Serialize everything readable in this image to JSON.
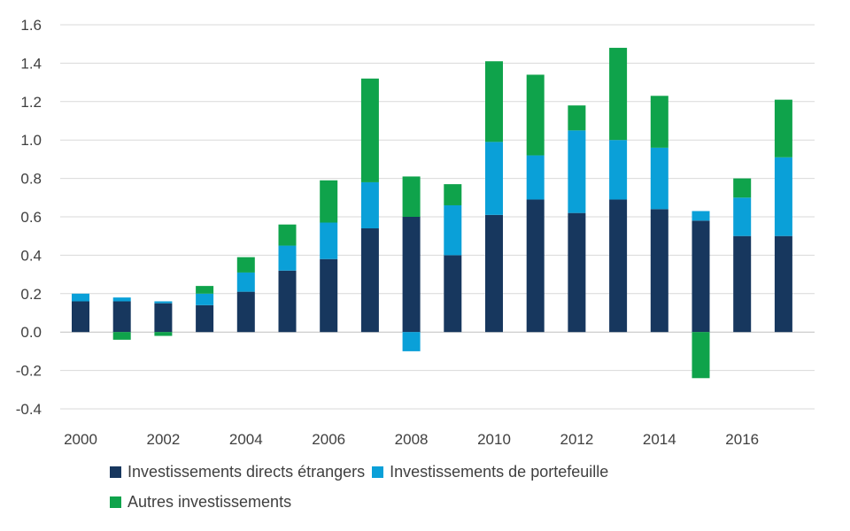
{
  "chart_data": {
    "type": "bar",
    "stacked": true,
    "title": "",
    "xlabel": "",
    "ylabel": "",
    "ylim": [
      -0.4,
      1.6
    ],
    "yticks": [
      "-0.4",
      "-0.2",
      "0.0",
      "0.2",
      "0.4",
      "0.6",
      "0.8",
      "1.0",
      "1.2",
      "1.4",
      "1.6"
    ],
    "xtick_labels": [
      "2000",
      "2002",
      "2004",
      "2006",
      "2008",
      "2010",
      "2012",
      "2014",
      "2016"
    ],
    "categories": [
      2000,
      2001,
      2002,
      2003,
      2004,
      2005,
      2006,
      2007,
      2008,
      2009,
      2010,
      2011,
      2012,
      2013,
      2014,
      2015,
      2016,
      2017
    ],
    "grid": true,
    "legend_position": "bottom",
    "series": [
      {
        "name": "Investissements directs étrangers",
        "color": "#17375e",
        "values": [
          0.16,
          0.16,
          0.15,
          0.14,
          0.21,
          0.32,
          0.38,
          0.54,
          0.6,
          0.4,
          0.61,
          0.69,
          0.62,
          0.69,
          0.64,
          0.58,
          0.5,
          0.5
        ]
      },
      {
        "name": "Investissements de portefeuille",
        "color": "#0aa0d8",
        "values": [
          0.04,
          0.02,
          0.01,
          0.06,
          0.1,
          0.13,
          0.19,
          0.24,
          -0.1,
          0.26,
          0.38,
          0.23,
          0.43,
          0.31,
          0.32,
          0.05,
          0.2,
          0.41
        ]
      },
      {
        "name": "Autres investissements",
        "color": "#0fa34b",
        "values": [
          0.0,
          -0.04,
          -0.02,
          0.04,
          0.08,
          0.11,
          0.22,
          0.54,
          0.21,
          0.11,
          0.42,
          0.42,
          0.13,
          0.48,
          0.27,
          -0.24,
          0.1,
          0.3
        ]
      }
    ]
  }
}
